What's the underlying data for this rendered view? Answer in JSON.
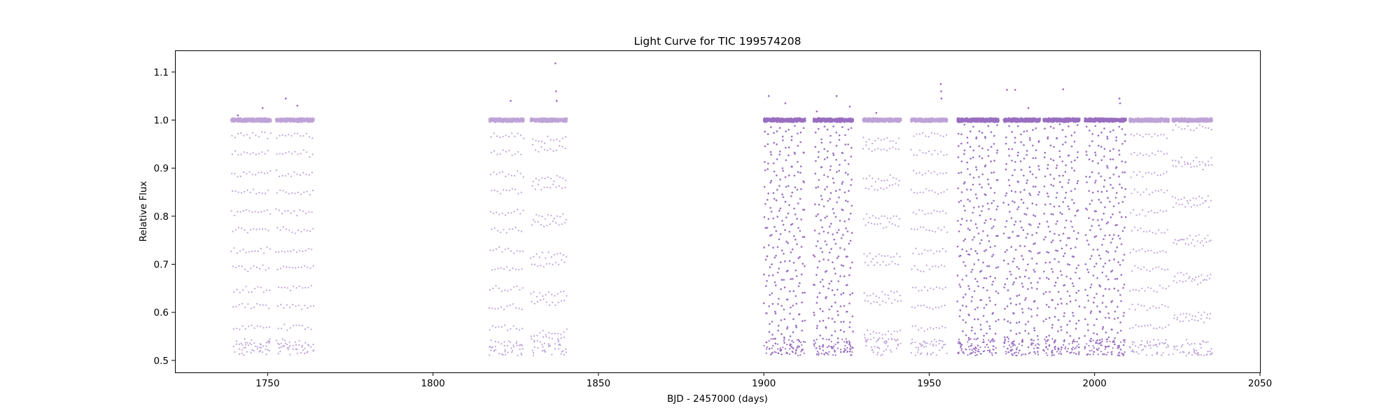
{
  "chart_data": {
    "type": "scatter",
    "title": "Light Curve for TIC 199574208",
    "xlabel": "BJD - 2457000 (days)",
    "ylabel": "Relative Flux",
    "xlim": [
      1722,
      2050
    ],
    "ylim": [
      0.475,
      1.145
    ],
    "xticks": [
      1750,
      1800,
      1850,
      1900,
      1950,
      2000,
      2050
    ],
    "yticks": [
      0.5,
      0.6,
      0.7,
      0.8,
      0.9,
      1.0,
      1.1
    ],
    "xtick_labels": [
      "1750",
      "1800",
      "1850",
      "1900",
      "1950",
      "2000",
      "2050"
    ],
    "ytick_labels": [
      "0.5",
      "0.6",
      "0.7",
      "0.8",
      "0.9",
      "1.0",
      "1.1"
    ],
    "grid": false,
    "legend": "none",
    "marker_color": "#9467bd",
    "baseline_flux": 1.0,
    "min_flux": 0.51,
    "segments": [
      {
        "start": 1739.0,
        "end": 1751.0,
        "density": "light"
      },
      {
        "start": 1752.5,
        "end": 1764.0,
        "density": "light"
      },
      {
        "start": 1817.0,
        "end": 1827.5,
        "density": "light"
      },
      {
        "start": 1829.5,
        "end": 1840.5,
        "density": "light"
      },
      {
        "start": 1900.0,
        "end": 1912.5,
        "density": "dense"
      },
      {
        "start": 1915.0,
        "end": 1927.0,
        "density": "dense"
      },
      {
        "start": 1930.0,
        "end": 1941.5,
        "density": "light"
      },
      {
        "start": 1944.5,
        "end": 1955.5,
        "density": "light"
      },
      {
        "start": 1958.5,
        "end": 1971.0,
        "density": "dense"
      },
      {
        "start": 1972.5,
        "end": 1983.5,
        "density": "dense"
      },
      {
        "start": 1984.5,
        "end": 1995.5,
        "density": "dense"
      },
      {
        "start": 1997.0,
        "end": 2009.5,
        "density": "dense"
      },
      {
        "start": 2010.5,
        "end": 2022.5,
        "density": "light"
      },
      {
        "start": 2023.5,
        "end": 2035.5,
        "density": "light"
      }
    ],
    "flares": [
      {
        "x": 1741.0,
        "y": 1.01
      },
      {
        "x": 1748.5,
        "y": 1.025
      },
      {
        "x": 1755.5,
        "y": 1.045
      },
      {
        "x": 1759.0,
        "y": 1.03
      },
      {
        "x": 1823.5,
        "y": 1.04
      },
      {
        "x": 1837.0,
        "y": 1.118
      },
      {
        "x": 1837.2,
        "y": 1.06
      },
      {
        "x": 1837.4,
        "y": 1.04
      },
      {
        "x": 1901.5,
        "y": 1.05
      },
      {
        "x": 1906.5,
        "y": 1.035
      },
      {
        "x": 1916.0,
        "y": 1.018
      },
      {
        "x": 1922.0,
        "y": 1.05
      },
      {
        "x": 1926.0,
        "y": 1.028
      },
      {
        "x": 1934.0,
        "y": 1.015
      },
      {
        "x": 1953.5,
        "y": 1.075
      },
      {
        "x": 1953.6,
        "y": 1.06
      },
      {
        "x": 1953.7,
        "y": 1.045
      },
      {
        "x": 1973.5,
        "y": 1.063
      },
      {
        "x": 1976.0,
        "y": 1.063
      },
      {
        "x": 1980.0,
        "y": 1.025
      },
      {
        "x": 1990.5,
        "y": 1.064
      },
      {
        "x": 2007.5,
        "y": 1.045
      },
      {
        "x": 2007.7,
        "y": 1.035
      }
    ]
  }
}
